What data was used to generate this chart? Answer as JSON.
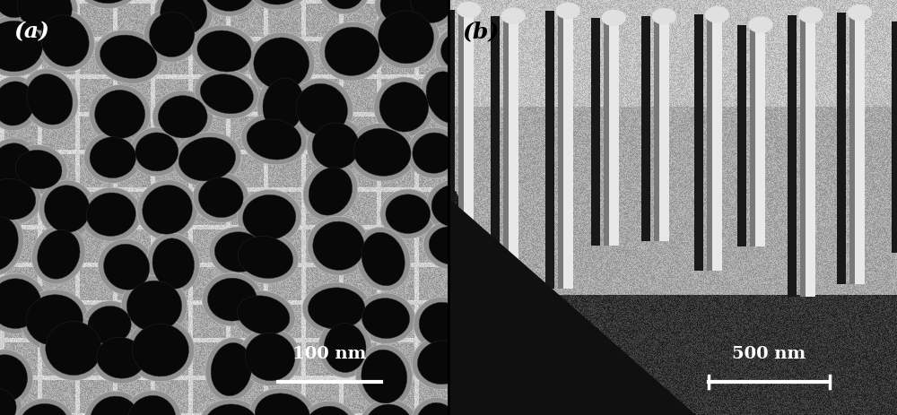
{
  "panel_a_label": "(a)",
  "panel_b_label": "(b)",
  "scalebar_a_text": "100 nm",
  "scalebar_b_text": "500 nm",
  "bg_color_a": "#b0b0b0",
  "bg_color_b": "#c0c0c0",
  "fig_width": 10.0,
  "fig_height": 4.64,
  "border_color": "#000000",
  "label_fontsize": 18,
  "scalebar_fontsize": 14,
  "panel_a_dot_color": "#050505",
  "panel_a_mid_color": "#888888",
  "panel_b_tube_light": "#f0f0f0",
  "panel_b_tube_dark": "#303030"
}
